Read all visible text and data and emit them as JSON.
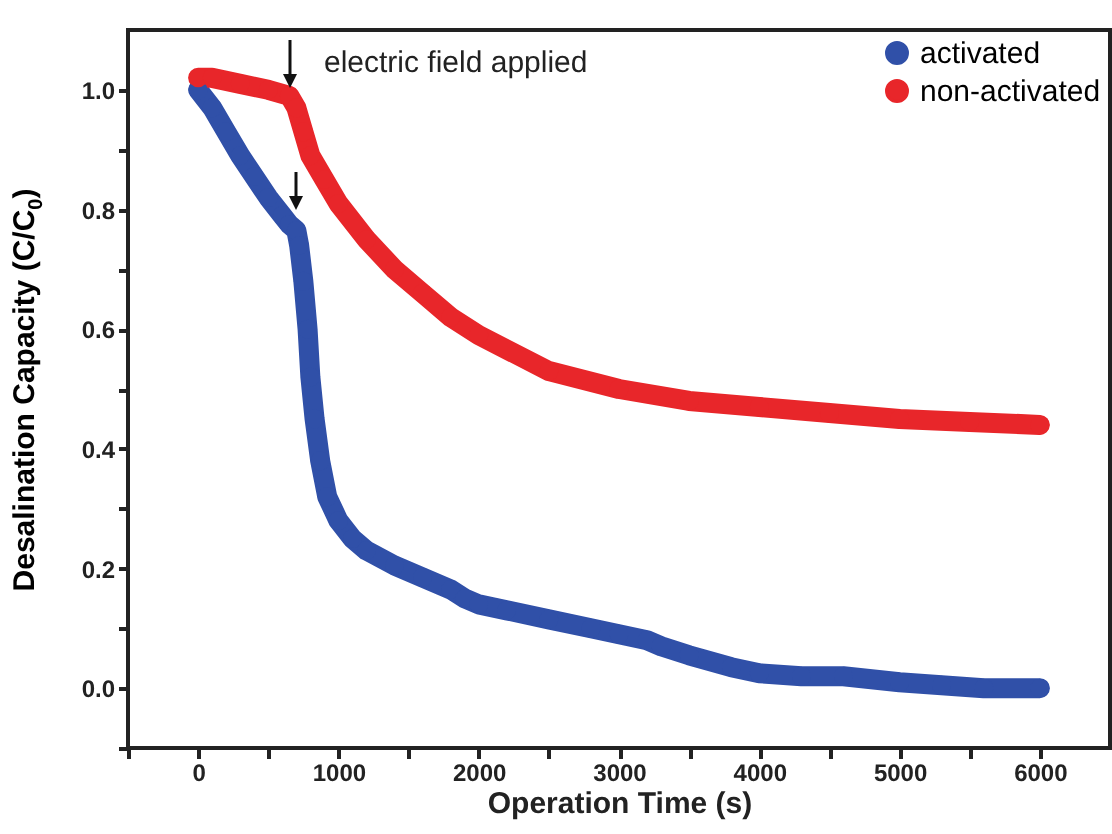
{
  "chart_data": {
    "type": "line",
    "xlabel": "Operation Time (s)",
    "ylabel": "Desalination Capacity (C/C$_{0}$)",
    "annotations": [
      "electric field applied"
    ],
    "xlim": [
      -500,
      6500
    ],
    "xticks": [
      {
        "value": -500,
        "label": null
      },
      0,
      {
        "value": 500,
        "label": null
      },
      1000,
      {
        "value": 1500,
        "label": null
      },
      2000,
      {
        "value": 2500,
        "label": null
      },
      3000,
      {
        "value": 3500,
        "label": null
      },
      4000,
      {
        "value": 4500,
        "label": null
      },
      5000,
      {
        "value": 5500,
        "label": null
      },
      6000
    ],
    "ylim": [
      -0.1,
      1.1
    ],
    "yticks": [
      {
        "value": -0.1,
        "label": null
      },
      {
        "value": 0,
        "label": "0.0"
      },
      {
        "value": 0.1,
        "label": null
      },
      0.2,
      {
        "value": 0.3,
        "label": null
      },
      0.4,
      {
        "value": 0.5,
        "label": null
      },
      0.6,
      {
        "value": 0.7,
        "label": null
      },
      0.8,
      {
        "value": 0.9,
        "label": null
      },
      {
        "value": 1,
        "label": "1.0"
      }
    ],
    "marker": "circle",
    "legend": "top right",
    "grid": false,
    "series": [
      {
        "name": "activated",
        "color": "#3050a8",
        "x": [
          0,
          100,
          200,
          300,
          400,
          500,
          600,
          650,
          700,
          720,
          750,
          780,
          800,
          830,
          870,
          920,
          1000,
          1100,
          1200,
          1400,
          1600,
          1800,
          1900,
          2000,
          2200,
          2500,
          2800,
          3000,
          3200,
          3300,
          3500,
          3800,
          4000,
          4300,
          4600,
          5000,
          5300,
          5600,
          6000
        ],
        "values": [
          1.0,
          0.97,
          0.93,
          0.89,
          0.855,
          0.82,
          0.79,
          0.775,
          0.765,
          0.74,
          0.68,
          0.6,
          0.52,
          0.45,
          0.38,
          0.32,
          0.28,
          0.25,
          0.23,
          0.205,
          0.185,
          0.165,
          0.15,
          0.14,
          0.13,
          0.115,
          0.1,
          0.09,
          0.08,
          0.07,
          0.055,
          0.035,
          0.025,
          0.02,
          0.02,
          0.01,
          0.005,
          0.0,
          0.0
        ]
      },
      {
        "name": "non-activated",
        "color": "#e8262a",
        "x": [
          0,
          100,
          300,
          500,
          650,
          700,
          750,
          800,
          900,
          1000,
          1200,
          1400,
          1600,
          1800,
          2000,
          2500,
          3000,
          3500,
          4000,
          4500,
          5000,
          5500,
          6000
        ],
        "values": [
          1.02,
          1.02,
          1.01,
          1.0,
          0.99,
          0.97,
          0.93,
          0.89,
          0.85,
          0.81,
          0.75,
          0.7,
          0.66,
          0.62,
          0.59,
          0.53,
          0.5,
          0.48,
          0.47,
          0.46,
          0.45,
          0.445,
          0.44
        ]
      }
    ]
  }
}
